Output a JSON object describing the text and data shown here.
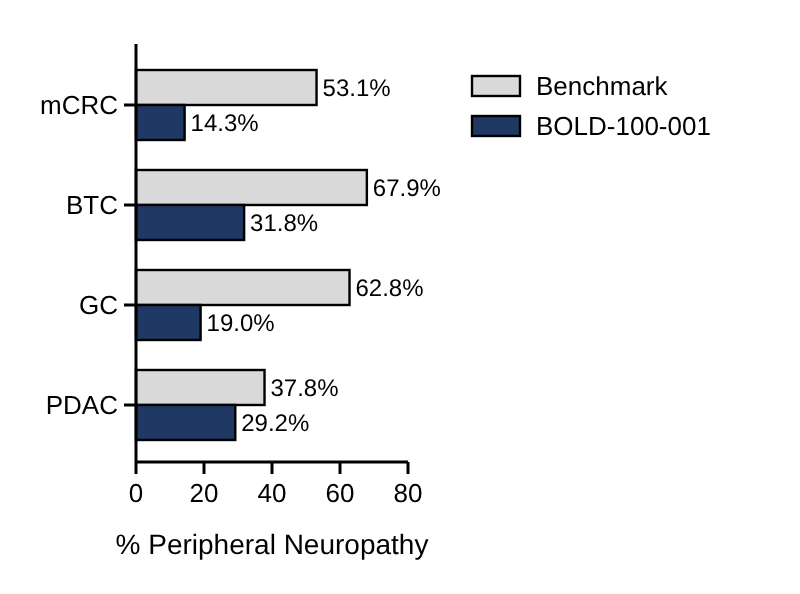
{
  "chart_data": {
    "type": "bar",
    "orientation": "horizontal",
    "categories": [
      "mCRC",
      "BTC",
      "GC",
      "PDAC"
    ],
    "xlabel": "% Peripheral Neuropathy",
    "xlim": [
      0,
      80
    ],
    "xticks": [
      0,
      20,
      40,
      60,
      80
    ],
    "legend": "top right",
    "grid": false,
    "series": [
      {
        "name": "Benchmark",
        "color": "#d9d9d9",
        "values": [
          53.1,
          67.9,
          62.8,
          37.8
        ],
        "value_labels": [
          "53.1%",
          "67.9%",
          "62.8%",
          "37.8%"
        ]
      },
      {
        "name": "BOLD-100-001",
        "color": "#1f3864",
        "values": [
          14.3,
          31.8,
          19.0,
          29.2
        ],
        "value_labels": [
          "14.3%",
          "31.8%",
          "19.0%",
          "29.2%"
        ]
      }
    ]
  }
}
